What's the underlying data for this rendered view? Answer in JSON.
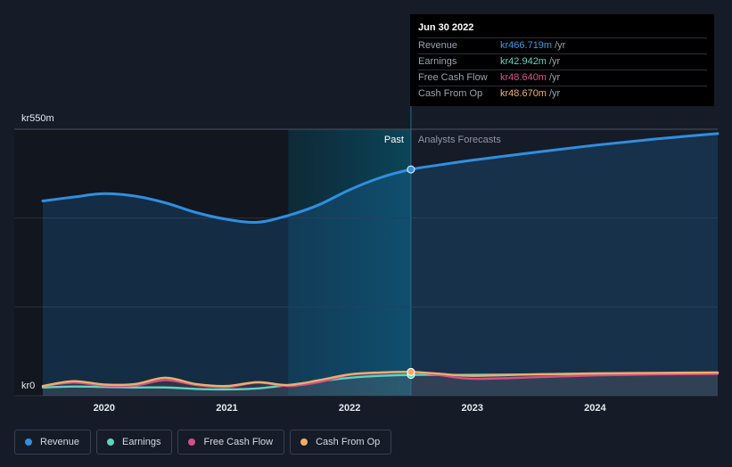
{
  "chart_data": {
    "type": "area",
    "y_max_label": "kr550m",
    "y_min_label": "kr0",
    "ylim": [
      0,
      550
    ],
    "xlim": [
      2019.5,
      2025.0
    ],
    "x_ticks": [
      2020,
      2021,
      2022,
      2023,
      2024
    ],
    "x_tick_labels": [
      "2020",
      "2021",
      "2022",
      "2023",
      "2024"
    ],
    "past_label": "Past",
    "forecast_label": "Analysts Forecasts",
    "divider_x": 2022.5,
    "highlight_start_x": 2021.5,
    "series": [
      {
        "name": "Revenue",
        "color": "#2f8fe0",
        "x": [
          2019.5,
          2019.75,
          2020.0,
          2020.25,
          2020.5,
          2020.75,
          2021.0,
          2021.25,
          2021.5,
          2021.75,
          2022.0,
          2022.25,
          2022.5,
          2022.75,
          2023.0,
          2023.5,
          2024.0,
          2024.5,
          2025.0
        ],
        "values": [
          402,
          410,
          417,
          412,
          398,
          378,
          364,
          358,
          372,
          394,
          425,
          450,
          467,
          477,
          486,
          502,
          517,
          530,
          541
        ]
      },
      {
        "name": "Earnings",
        "color": "#5ed3c2",
        "x": [
          2019.5,
          2019.75,
          2020.0,
          2020.25,
          2020.5,
          2020.75,
          2021.0,
          2021.25,
          2021.5,
          2021.75,
          2022.0,
          2022.25,
          2022.5,
          2022.75,
          2023.0,
          2023.5,
          2024.0,
          2024.5,
          2025.0
        ],
        "values": [
          17,
          19,
          18,
          17,
          17,
          14,
          13,
          15,
          22,
          30,
          37,
          41,
          43,
          43,
          43,
          44,
          45,
          46,
          47
        ]
      },
      {
        "name": "Free Cash Flow",
        "color": "#d44f86",
        "x": [
          2019.5,
          2019.75,
          2020.0,
          2020.25,
          2020.5,
          2020.75,
          2021.0,
          2021.25,
          2021.5,
          2021.75,
          2022.0,
          2022.25,
          2022.5,
          2022.75,
          2023.0,
          2023.5,
          2024.0,
          2024.5,
          2025.0
        ],
        "values": [
          20,
          27,
          21,
          21,
          32,
          22,
          18,
          27,
          20,
          28,
          43,
          47,
          49,
          42,
          35,
          38,
          42,
          44,
          45
        ]
      },
      {
        "name": "Cash From Op",
        "color": "#eeae6a",
        "x": [
          2019.5,
          2019.75,
          2020.0,
          2020.25,
          2020.5,
          2020.75,
          2021.0,
          2021.25,
          2021.5,
          2021.75,
          2022.0,
          2022.25,
          2022.5,
          2022.75,
          2023.0,
          2023.5,
          2024.0,
          2024.5,
          2025.0
        ],
        "values": [
          20,
          30,
          23,
          24,
          37,
          24,
          20,
          28,
          22,
          32,
          44,
          48,
          49,
          45,
          41,
          44,
          46,
          47,
          48
        ]
      }
    ]
  },
  "tooltip": {
    "date": "Jun 30 2022",
    "unit": "/yr",
    "rows": [
      {
        "label": "Revenue",
        "value": "kr466.719m",
        "color": "#3a9be8"
      },
      {
        "label": "Earnings",
        "value": "kr42.942m",
        "color": "#5ed3c2"
      },
      {
        "label": "Free Cash Flow",
        "value": "kr48.640m",
        "color": "#e05590"
      },
      {
        "label": "Cash From Op",
        "value": "kr48.670m",
        "color": "#f0b26e"
      }
    ]
  },
  "legend": [
    {
      "label": "Revenue",
      "color": "#2f8fe0"
    },
    {
      "label": "Earnings",
      "color": "#5ed3c2"
    },
    {
      "label": "Free Cash Flow",
      "color": "#d44f86"
    },
    {
      "label": "Cash From Op",
      "color": "#eeae6a"
    }
  ]
}
